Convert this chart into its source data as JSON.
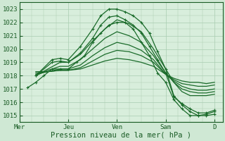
{
  "title": "Pression niveau de la mer( hPa )",
  "background_color": "#cfe8d4",
  "plot_bg_color": "#d8eedc",
  "grid_color": "#a8ccb0",
  "line_color": "#1a6b2a",
  "ylim": [
    1014.5,
    1023.5
  ],
  "yticks": [
    1015,
    1016,
    1017,
    1018,
    1019,
    1020,
    1021,
    1022,
    1023
  ],
  "day_labels": [
    "Mer",
    "Jeu",
    "Ven",
    "Sam",
    "D"
  ],
  "day_positions": [
    0,
    24,
    48,
    72,
    96
  ],
  "xlim": [
    0,
    100
  ],
  "lines": [
    {
      "x": [
        8,
        16,
        20,
        24,
        30,
        36,
        40,
        44,
        48,
        52,
        56,
        60,
        64,
        68,
        72,
        76,
        80,
        84,
        88,
        92,
        96
      ],
      "y": [
        1018.0,
        1019.2,
        1019.3,
        1019.2,
        1020.2,
        1021.5,
        1022.5,
        1023.0,
        1023.0,
        1022.8,
        1022.5,
        1022.0,
        1021.2,
        1019.8,
        1018.5,
        1016.5,
        1015.8,
        1015.3,
        1015.0,
        1015.0,
        1015.1
      ],
      "marker": true,
      "lw": 0.9
    },
    {
      "x": [
        8,
        16,
        20,
        24,
        30,
        36,
        40,
        44,
        48,
        52,
        56,
        60,
        64,
        68,
        72,
        76,
        80,
        84,
        88,
        92,
        96
      ],
      "y": [
        1018.0,
        1019.0,
        1019.1,
        1019.0,
        1019.7,
        1020.8,
        1021.8,
        1022.4,
        1022.5,
        1022.2,
        1021.8,
        1021.2,
        1020.2,
        1019.2,
        1018.2,
        1016.4,
        1015.9,
        1015.5,
        1015.2,
        1015.2,
        1015.4
      ],
      "marker": true,
      "lw": 0.9
    },
    {
      "x": [
        8,
        14,
        20,
        24,
        30,
        36,
        42,
        48,
        54,
        60,
        66,
        72,
        76,
        80,
        84,
        88,
        92,
        96
      ],
      "y": [
        1018.0,
        1018.5,
        1019.0,
        1019.0,
        1019.6,
        1020.6,
        1021.5,
        1022.2,
        1021.9,
        1021.3,
        1020.0,
        1018.5,
        1017.5,
        1016.8,
        1016.5,
        1016.5,
        1016.5,
        1016.6
      ],
      "marker": false,
      "lw": 0.9
    },
    {
      "x": [
        8,
        14,
        20,
        24,
        30,
        36,
        42,
        48,
        54,
        60,
        66,
        72,
        76,
        80,
        84,
        88,
        92,
        96
      ],
      "y": [
        1018.0,
        1018.4,
        1018.7,
        1018.7,
        1019.2,
        1020.0,
        1020.8,
        1021.3,
        1021.0,
        1020.5,
        1019.5,
        1018.2,
        1017.5,
        1017.0,
        1016.8,
        1016.7,
        1016.7,
        1016.8
      ],
      "marker": false,
      "lw": 0.9
    },
    {
      "x": [
        8,
        14,
        20,
        24,
        30,
        36,
        42,
        48,
        54,
        60,
        66,
        72,
        76,
        80,
        84,
        88,
        92,
        96
      ],
      "y": [
        1018.1,
        1018.3,
        1018.5,
        1018.5,
        1018.8,
        1019.5,
        1020.1,
        1020.5,
        1020.3,
        1019.9,
        1019.2,
        1018.1,
        1017.6,
        1017.2,
        1017.0,
        1016.9,
        1016.9,
        1017.0
      ],
      "marker": false,
      "lw": 0.9
    },
    {
      "x": [
        8,
        14,
        20,
        24,
        30,
        36,
        42,
        48,
        54,
        60,
        66,
        72,
        76,
        80,
        84,
        88,
        92,
        96
      ],
      "y": [
        1018.2,
        1018.3,
        1018.4,
        1018.4,
        1018.6,
        1019.1,
        1019.6,
        1019.9,
        1019.8,
        1019.5,
        1019.0,
        1018.1,
        1017.7,
        1017.4,
        1017.3,
        1017.2,
        1017.2,
        1017.3
      ],
      "marker": false,
      "lw": 0.9
    },
    {
      "x": [
        8,
        14,
        20,
        24,
        30,
        36,
        42,
        48,
        54,
        60,
        66,
        72,
        76,
        80,
        84,
        88,
        92,
        96
      ],
      "y": [
        1018.3,
        1018.3,
        1018.4,
        1018.4,
        1018.5,
        1018.8,
        1019.1,
        1019.3,
        1019.2,
        1019.0,
        1018.7,
        1018.1,
        1017.8,
        1017.6,
        1017.5,
        1017.5,
        1017.4,
        1017.5
      ],
      "marker": false,
      "lw": 0.9
    },
    {
      "x": [
        4,
        8,
        12,
        16,
        20,
        24,
        28,
        32,
        36,
        40,
        44,
        48,
        52,
        56,
        60,
        64,
        68,
        72,
        76,
        80,
        84,
        88,
        92,
        96
      ],
      "y": [
        1017.1,
        1017.5,
        1018.0,
        1018.5,
        1018.5,
        1018.5,
        1019.0,
        1019.5,
        1020.5,
        1021.2,
        1021.8,
        1022.0,
        1022.0,
        1021.5,
        1020.5,
        1019.5,
        1018.2,
        1017.5,
        1016.2,
        1015.5,
        1015.0,
        1015.0,
        1015.1,
        1015.3
      ],
      "marker": true,
      "lw": 0.9
    }
  ]
}
